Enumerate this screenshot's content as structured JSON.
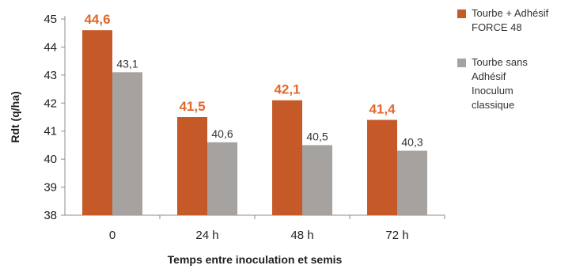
{
  "chart_data": {
    "type": "bar",
    "categories": [
      "0",
      "24 h",
      "48 h",
      "72 h"
    ],
    "series": [
      {
        "name": "Tourbe + Adhésif FORCE 48",
        "legend_lines": [
          "Tourbe + Adhésif",
          "FORCE 48"
        ],
        "values": [
          44.6,
          41.5,
          42.1,
          41.4
        ],
        "labels": [
          "44,6",
          "41,5",
          "42,1",
          "41,4"
        ],
        "color": "#C55A28"
      },
      {
        "name": "Tourbe sans Adhésif Inoculum classique",
        "legend_lines": [
          "Tourbe sans",
          "Adhésif",
          "Inoculum",
          "classique"
        ],
        "values": [
          43.1,
          40.6,
          40.5,
          40.3
        ],
        "labels": [
          "43,1",
          "40,6",
          "40,5",
          "40,3"
        ],
        "color": "#A6A2A0"
      }
    ],
    "xlabel": "Temps entre inoculation et semis",
    "ylabel": "Rdt (q/ha)",
    "ylim": [
      38,
      45
    ],
    "yticks": [
      "38",
      "39",
      "40",
      "41",
      "42",
      "43",
      "44",
      "45"
    ],
    "grid": false,
    "legend_position": "right"
  }
}
